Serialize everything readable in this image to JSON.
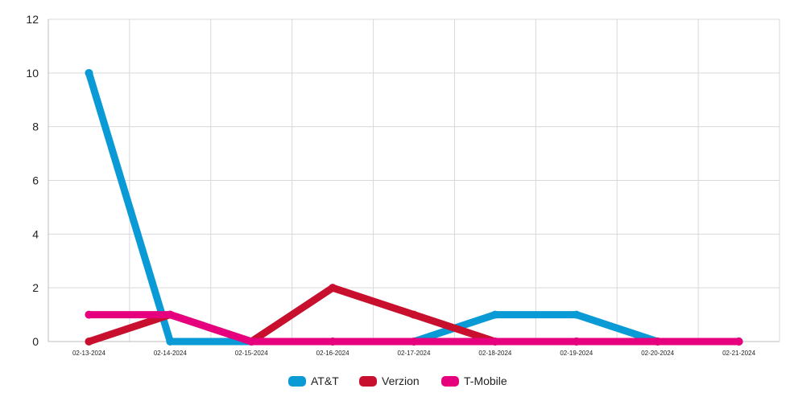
{
  "chart_data": {
    "type": "line",
    "title": "",
    "xlabel": "",
    "ylabel": "",
    "categories": [
      "02-13-2024",
      "02-14-2024",
      "02-15-2024",
      "02-16-2024",
      "02-17-2024",
      "02-18-2024",
      "02-19-2024",
      "02-20-2024",
      "02-21-2024"
    ],
    "ylim": [
      0,
      12
    ],
    "yticks": [
      0,
      2,
      4,
      6,
      8,
      10,
      12
    ],
    "grid": true,
    "legend_position": "bottom",
    "series": [
      {
        "name": "AT&T",
        "color": "#0a9ad6",
        "values": [
          10,
          0,
          0,
          0,
          0,
          1,
          1,
          0,
          0
        ]
      },
      {
        "name": "Verzion",
        "color": "#c8102e",
        "values": [
          0,
          1,
          0,
          2,
          1,
          0,
          0,
          0,
          0
        ]
      },
      {
        "name": "T-Mobile",
        "color": "#e6007e",
        "values": [
          1,
          1,
          0,
          0,
          0,
          0,
          0,
          0,
          0
        ]
      }
    ]
  }
}
